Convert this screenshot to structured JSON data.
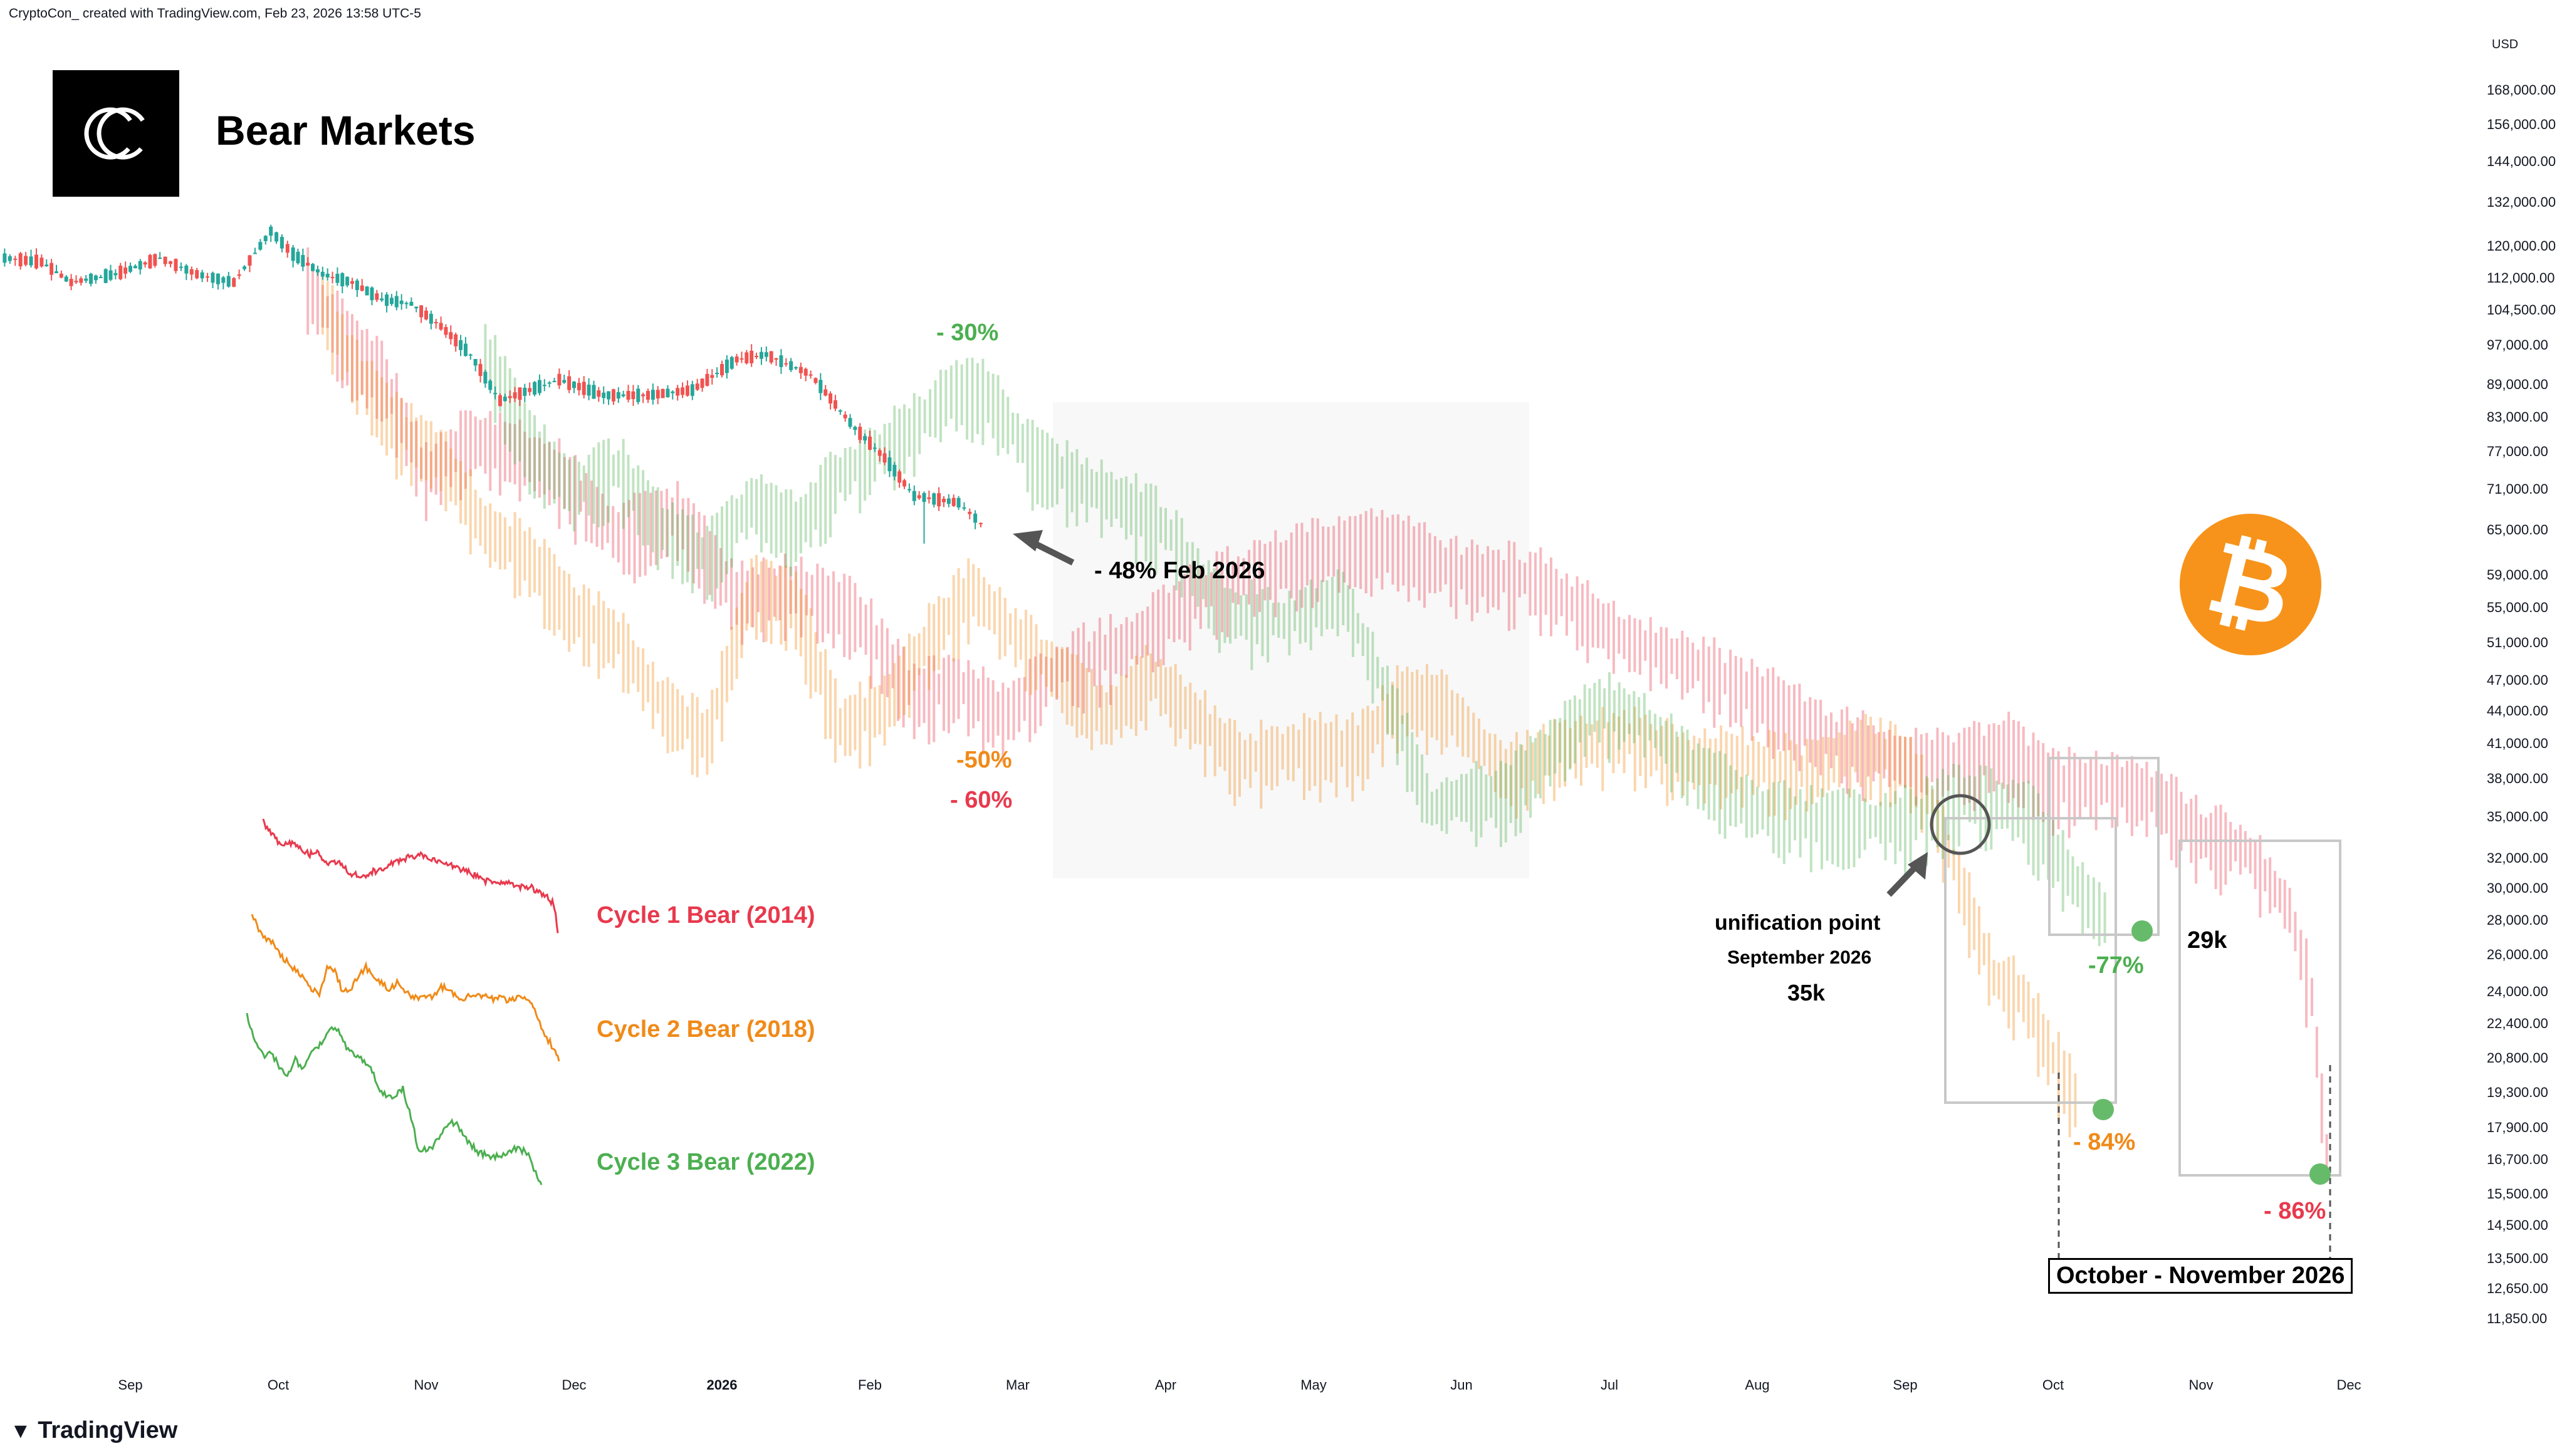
{
  "header": {
    "credit": "CryptoCon_  created with TradingView.com, Feb 23, 2026 13:58 UTC-5"
  },
  "title": "Bear Markets",
  "brand": "TradingView",
  "colors": {
    "cycle1": "#e8394d",
    "cycle2": "#f08a18",
    "cycle3": "#4caf50",
    "candle_up": "#26a69a",
    "candle_down": "#ef5350",
    "btc": "#f7931a"
  },
  "chart_data": {
    "type": "line",
    "y_scale": "log",
    "currency": "USD",
    "ylim": [
      11000,
      176000
    ],
    "y_ticks": [
      168000,
      156000,
      144000,
      132000,
      120000,
      112000,
      104500,
      97000,
      89000,
      83000,
      77000,
      71000,
      65000,
      59000,
      55000,
      51000,
      47000,
      44000,
      41000,
      38000,
      35000,
      32000,
      30000,
      28000,
      26000,
      24000,
      22400,
      20800,
      19300,
      17900,
      16700,
      15500,
      14500,
      13500,
      12650,
      11850
    ],
    "y_tick_labels": [
      "168,000.00",
      "156,000.00",
      "144,000.00",
      "132,000.00",
      "120,000.00",
      "112,000.00",
      "104,500.00",
      "97,000.00",
      "89,000.00",
      "83,000.00",
      "77,000.00",
      "71,000.00",
      "65,000.00",
      "59,000.00",
      "55,000.00",
      "51,000.00",
      "47,000.00",
      "44,000.00",
      "41,000.00",
      "38,000.00",
      "35,000.00",
      "32,000.00",
      "30,000.00",
      "28,000.00",
      "26,000.00",
      "24,000.00",
      "22,400.00",
      "20,800.00",
      "19,300.00",
      "17,900.00",
      "16,700.00",
      "15,500.00",
      "14,500.00",
      "13,500.00",
      "12,650.00",
      "11,850.00"
    ],
    "x_labels": [
      {
        "label": "Sep",
        "month": 0
      },
      {
        "label": "Oct",
        "month": 1
      },
      {
        "label": "Nov",
        "month": 2
      },
      {
        "label": "Dec",
        "month": 3
      },
      {
        "label": "2026",
        "month": 4,
        "bold": true
      },
      {
        "label": "Feb",
        "month": 5
      },
      {
        "label": "Mar",
        "month": 6
      },
      {
        "label": "Apr",
        "month": 7
      },
      {
        "label": "May",
        "month": 8
      },
      {
        "label": "Jun",
        "month": 9
      },
      {
        "label": "Jul",
        "month": 10
      },
      {
        "label": "Aug",
        "month": 11
      },
      {
        "label": "Sep",
        "month": 12
      },
      {
        "label": "Oct",
        "month": 13
      },
      {
        "label": "Nov",
        "month": 14
      },
      {
        "label": "Dec",
        "month": 15
      }
    ],
    "series": [
      {
        "name": "BTC",
        "color": "candle",
        "points": [
          [
            -0.85,
            117000
          ],
          [
            -0.6,
            116000
          ],
          [
            -0.4,
            111000
          ],
          [
            -0.1,
            113000
          ],
          [
            0.2,
            117000
          ],
          [
            0.45,
            113000
          ],
          [
            0.7,
            111000
          ],
          [
            0.95,
            124000
          ],
          [
            1.1,
            118000
          ],
          [
            1.3,
            113000
          ],
          [
            1.5,
            111000
          ],
          [
            1.7,
            107000
          ],
          [
            1.9,
            106000
          ],
          [
            2.1,
            101000
          ],
          [
            2.3,
            95000
          ],
          [
            2.5,
            86000
          ],
          [
            2.7,
            88000
          ],
          [
            2.9,
            90000
          ],
          [
            3.2,
            87000
          ],
          [
            3.5,
            87000
          ],
          [
            3.8,
            88000
          ],
          [
            4.1,
            94000
          ],
          [
            4.3,
            95000
          ],
          [
            4.6,
            91000
          ],
          [
            4.9,
            81000
          ],
          [
            5.1,
            76000
          ],
          [
            5.3,
            70000
          ],
          [
            5.6,
            69000
          ],
          [
            5.75,
            66000
          ]
        ]
      },
      {
        "name": "Cycle 1 Bear (2014)",
        "color": "#e8394d",
        "points": [
          [
            1.2,
            112000
          ],
          [
            1.5,
            97000
          ],
          [
            1.7,
            92000
          ],
          [
            2.0,
            74000
          ],
          [
            2.3,
            80000
          ],
          [
            2.6,
            78000
          ],
          [
            2.9,
            74000
          ],
          [
            3.3,
            65000
          ],
          [
            3.7,
            68000
          ],
          [
            4.1,
            57000
          ],
          [
            4.5,
            58000
          ],
          [
            4.9,
            55000
          ],
          [
            5.3,
            46000
          ],
          [
            5.6,
            47000
          ],
          [
            5.9,
            44000
          ],
          [
            6.3,
            49000
          ],
          [
            6.7,
            51000
          ],
          [
            7.2,
            57000
          ],
          [
            7.6,
            60000
          ],
          [
            8.1,
            63000
          ],
          [
            8.5,
            64000
          ],
          [
            9.0,
            60000
          ],
          [
            9.5,
            59000
          ],
          [
            10.1,
            52000
          ],
          [
            10.6,
            49000
          ],
          [
            11.0,
            46000
          ],
          [
            11.5,
            42000
          ],
          [
            12.0,
            40000
          ],
          [
            12.4,
            40000
          ],
          [
            12.7,
            41000
          ],
          [
            13.0,
            38000
          ],
          [
            13.4,
            38000
          ],
          [
            13.7,
            37000
          ],
          [
            14.0,
            34000
          ],
          [
            14.3,
            33000
          ],
          [
            14.6,
            29000
          ],
          [
            14.75,
            24000
          ],
          [
            14.85,
            17000
          ]
        ]
      },
      {
        "name": "Cycle 2 Bear (2018)",
        "color": "#f08a18",
        "points": [
          [
            1.3,
            108000
          ],
          [
            1.5,
            94000
          ],
          [
            1.8,
            82000
          ],
          [
            2.1,
            77000
          ],
          [
            2.4,
            66000
          ],
          [
            2.7,
            62000
          ],
          [
            3.0,
            55000
          ],
          [
            3.3,
            52000
          ],
          [
            3.6,
            45000
          ],
          [
            3.9,
            42000
          ],
          [
            4.2,
            58000
          ],
          [
            4.5,
            56000
          ],
          [
            4.8,
            43000
          ],
          [
            5.1,
            45000
          ],
          [
            5.4,
            52000
          ],
          [
            5.7,
            58000
          ],
          [
            5.95,
            53000
          ],
          [
            6.3,
            48000
          ],
          [
            6.6,
            44000
          ],
          [
            6.9,
            48000
          ],
          [
            7.2,
            44000
          ],
          [
            7.5,
            40000
          ],
          [
            7.9,
            41000
          ],
          [
            8.3,
            41000
          ],
          [
            8.6,
            46000
          ],
          [
            8.9,
            45000
          ],
          [
            9.3,
            39000
          ],
          [
            9.7,
            41000
          ],
          [
            10.1,
            42000
          ],
          [
            10.5,
            40000
          ],
          [
            10.9,
            40000
          ],
          [
            11.3,
            39000
          ],
          [
            11.7,
            41000
          ],
          [
            12.0,
            40000
          ],
          [
            12.15,
            37000
          ],
          [
            12.4,
            30000
          ],
          [
            12.6,
            25000
          ],
          [
            12.8,
            24000
          ],
          [
            13.0,
            21000
          ],
          [
            13.15,
            19300
          ]
        ]
      },
      {
        "name": "Cycle 3 Bear (2022)",
        "color": "#4caf50",
        "points": [
          [
            2.4,
            97000
          ],
          [
            2.7,
            79000
          ],
          [
            3.0,
            72000
          ],
          [
            3.3,
            75000
          ],
          [
            3.6,
            66000
          ],
          [
            3.9,
            62000
          ],
          [
            4.2,
            70000
          ],
          [
            4.5,
            66000
          ],
          [
            4.8,
            74000
          ],
          [
            5.0,
            77000
          ],
          [
            5.3,
            82000
          ],
          [
            5.55,
            89000
          ],
          [
            5.8,
            88000
          ],
          [
            6.1,
            77000
          ],
          [
            6.4,
            73000
          ],
          [
            6.7,
            70000
          ],
          [
            7.0,
            66000
          ],
          [
            7.4,
            55000
          ],
          [
            7.8,
            54000
          ],
          [
            8.2,
            57000
          ],
          [
            8.5,
            46000
          ],
          [
            8.8,
            36000
          ],
          [
            9.0,
            37000
          ],
          [
            9.3,
            37000
          ],
          [
            9.6,
            41000
          ],
          [
            9.9,
            45000
          ],
          [
            10.2,
            44000
          ],
          [
            10.6,
            39000
          ],
          [
            11.0,
            36000
          ],
          [
            11.4,
            35000
          ],
          [
            11.8,
            35000
          ],
          [
            12.0,
            35000
          ],
          [
            12.4,
            37000
          ],
          [
            12.8,
            36000
          ],
          [
            13.0,
            33000
          ],
          [
            13.2,
            30000
          ],
          [
            13.35,
            28600
          ]
        ]
      }
    ],
    "legend": [
      {
        "label": "Cycle 1 Bear (2014)",
        "color": "#e8394d"
      },
      {
        "label": "Cycle 2 Bear (2018)",
        "color": "#f08a18"
      },
      {
        "label": "Cycle 3 Bear (2022)",
        "color": "#4caf50"
      }
    ],
    "annotations": {
      "green_top": "- 30%",
      "current": "- 48% Feb 2026",
      "orange_mid": "-50%",
      "red_mid": "- 60%",
      "unification_title": "unification point",
      "unification_date": "September 2026",
      "unification_price": "35k",
      "green_low_pct": "-77%",
      "green_low_price": "29k",
      "orange_low_pct": "- 84%",
      "red_low_pct": "- 86%",
      "window": "October - November 2026"
    }
  }
}
